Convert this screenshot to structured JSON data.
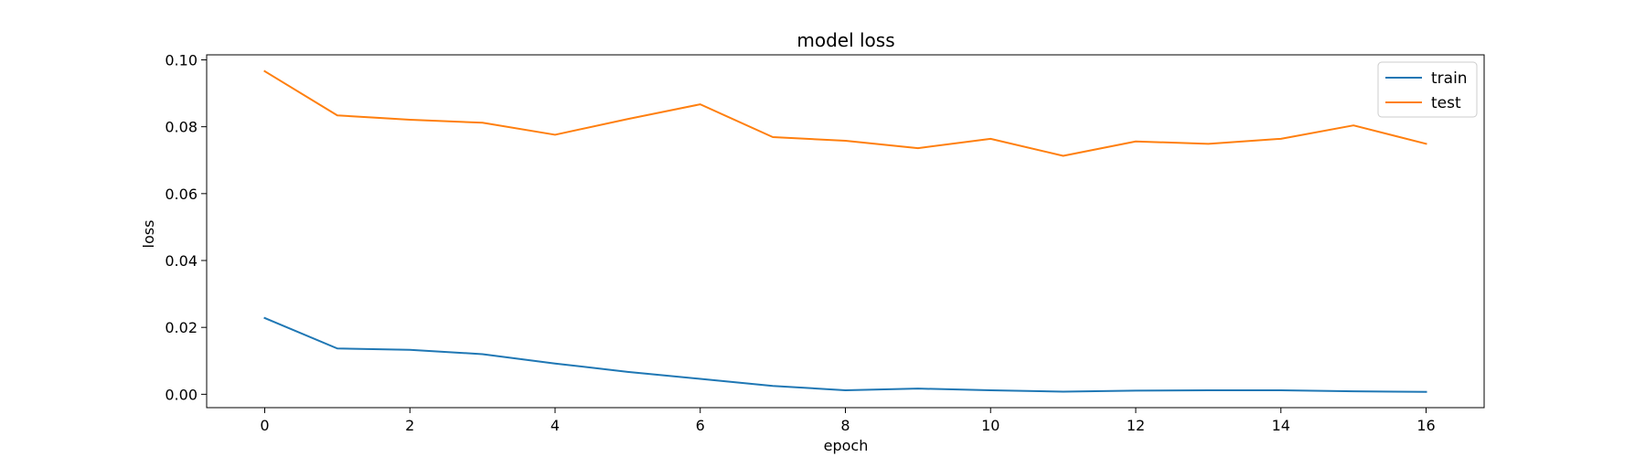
{
  "chart_data": {
    "type": "line",
    "title": "model loss",
    "xlabel": "epoch",
    "ylabel": "loss",
    "xlim": [
      -0.8,
      16.8
    ],
    "ylim": [
      -0.004,
      0.1015
    ],
    "xticks": [
      0,
      2,
      4,
      6,
      8,
      10,
      12,
      14,
      16
    ],
    "yticks": [
      0.0,
      0.02,
      0.04,
      0.06,
      0.08,
      0.1
    ],
    "xtick_labels": [
      "0",
      "2",
      "4",
      "6",
      "8",
      "10",
      "12",
      "14",
      "16"
    ],
    "ytick_labels": [
      "0.00",
      "0.02",
      "0.04",
      "0.06",
      "0.08",
      "0.10"
    ],
    "grid": false,
    "legend_position": "upper right",
    "x": [
      0,
      1,
      2,
      3,
      4,
      5,
      6,
      7,
      8,
      9,
      10,
      11,
      12,
      13,
      14,
      15,
      16
    ],
    "series": [
      {
        "name": "train",
        "color": "#1f77b4",
        "values": [
          0.0228,
          0.0137,
          0.0133,
          0.012,
          0.0092,
          0.0067,
          0.0046,
          0.0025,
          0.0012,
          0.0017,
          0.0012,
          0.0008,
          0.0011,
          0.0012,
          0.0012,
          0.0009,
          0.0007
        ]
      },
      {
        "name": "test",
        "color": "#ff7f0e",
        "values": [
          0.0966,
          0.0834,
          0.0821,
          0.0812,
          0.0776,
          0.0823,
          0.0867,
          0.0769,
          0.0758,
          0.0736,
          0.0764,
          0.0713,
          0.0756,
          0.0749,
          0.0764,
          0.0804,
          0.0749
        ]
      }
    ]
  }
}
